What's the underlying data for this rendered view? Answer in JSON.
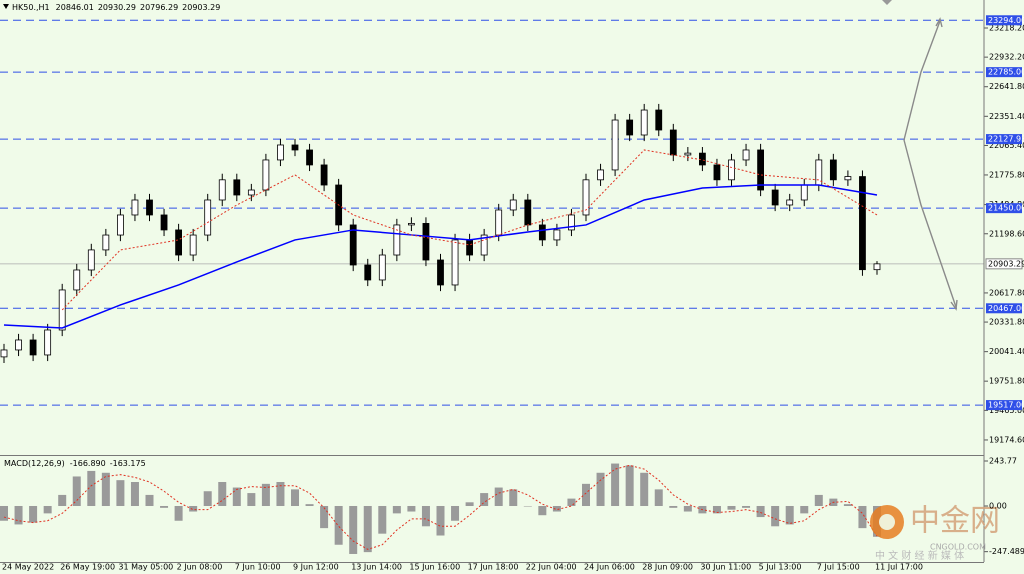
{
  "chart_data": [
    {
      "type": "candlestick",
      "title": "HK50.,H1",
      "categories": [
        "24 May 2022",
        null,
        null,
        null,
        "26 May 19:00",
        null,
        null,
        null,
        "31 May 05:00",
        null,
        null,
        null,
        "2 Jun 08:00",
        null,
        null,
        null,
        "7 Jun 10:00",
        null,
        null,
        null,
        "9 Jun 12:00",
        null,
        null,
        null,
        "13 Jun 14:00",
        null,
        null,
        null,
        "15 Jun 16:00",
        null,
        null,
        null,
        "17 Jun 18:00",
        null,
        null,
        null,
        "22 Jun 04:00",
        null,
        null,
        null,
        "24 Jun 06:00",
        null,
        null,
        null,
        "28 Jun 09:00",
        null,
        null,
        null,
        "30 Jun 11:00",
        null,
        null,
        null,
        "5 Jul 13:00",
        null,
        null,
        null,
        "7 Jul 15:00",
        null,
        null,
        null,
        "11 Jul 17:00"
      ],
      "open": [
        19990,
        20058,
        20156,
        20009,
        20254,
        20647,
        20843,
        21040,
        21186,
        21383,
        21530,
        21383,
        21236,
        20990,
        21186,
        21530,
        21728,
        21579,
        21628,
        21923,
        22070,
        22021,
        21874,
        21677,
        21285,
        20892,
        20745,
        20990,
        21285,
        21300,
        20941,
        20696,
        21138,
        20990,
        21186,
        21432,
        21530,
        21285,
        21138,
        21236,
        21383,
        21728,
        21825,
        22315,
        22168,
        22413,
        22217,
        21972,
        21990,
        21874,
        21728,
        21923,
        22021,
        21628,
        21481,
        21530,
        21677,
        21923,
        21728,
        21760,
        20846.01
      ],
      "high": [
        20118,
        20216,
        20216,
        20314,
        20707,
        20903,
        21100,
        21246,
        21443,
        21590,
        21590,
        21443,
        21296,
        21246,
        21590,
        21788,
        21788,
        21688,
        21983,
        22130,
        22130,
        22081,
        21934,
        21737,
        21345,
        20952,
        21050,
        21345,
        21360,
        21360,
        21001,
        21198,
        21198,
        21246,
        21492,
        21590,
        21590,
        21345,
        21296,
        21443,
        21788,
        21885,
        22375,
        22375,
        22473,
        22473,
        22277,
        22050,
        22050,
        21934,
        21983,
        22081,
        22081,
        21688,
        21590,
        21737,
        21983,
        21983,
        21820,
        21820,
        20930.29
      ],
      "low": [
        19930,
        19998,
        19949,
        19949,
        20194,
        20587,
        20783,
        20980,
        21126,
        21323,
        21323,
        21176,
        20930,
        20930,
        21126,
        21470,
        21519,
        21519,
        21568,
        21863,
        21961,
        21814,
        21617,
        21225,
        20832,
        20685,
        20685,
        20930,
        21225,
        20881,
        20636,
        20636,
        20930,
        20930,
        21126,
        21372,
        21225,
        21078,
        21078,
        21176,
        21323,
        21668,
        21765,
        22108,
        22108,
        22157,
        21912,
        21912,
        21814,
        21668,
        21668,
        21863,
        21568,
        21421,
        21421,
        21470,
        21617,
        21668,
        21668,
        20786,
        20796.29
      ],
      "close": [
        20058,
        20156,
        20009,
        20254,
        20647,
        20843,
        21040,
        21186,
        21383,
        21530,
        21383,
        21236,
        20990,
        21186,
        21530,
        21728,
        21579,
        21628,
        21923,
        22070,
        22021,
        21874,
        21677,
        21285,
        20892,
        20745,
        20990,
        21285,
        21300,
        20941,
        20696,
        21138,
        20990,
        21186,
        21432,
        21530,
        21285,
        21138,
        21236,
        21383,
        21728,
        21825,
        22315,
        22168,
        22413,
        22217,
        21972,
        21990,
        21874,
        21728,
        21923,
        22021,
        21628,
        21481,
        21530,
        21677,
        21923,
        21728,
        21760,
        20846.01,
        20903.29
      ],
      "up_color": "#ffffff",
      "down_color": "#000000",
      "series": [
        {
          "color": "#0000ff",
          "x": [
            0,
            4,
            8,
            12,
            16,
            20,
            24,
            28,
            32,
            36,
            40,
            44,
            48,
            52,
            56,
            60
          ],
          "values": [
            20303,
            20274,
            20500,
            20696,
            20922,
            21138,
            21236,
            21187,
            21138,
            21216,
            21285,
            21530,
            21648,
            21677,
            21677,
            21579
          ]
        },
        {
          "color": "#e03020",
          "dashed": true,
          "x": [
            4,
            8,
            12,
            16,
            20,
            24,
            28,
            32,
            36,
            40,
            44,
            48,
            52,
            56,
            60
          ],
          "values": [
            20451,
            21040,
            21138,
            21481,
            21776,
            21383,
            21187,
            21089,
            21285,
            21432,
            22021,
            21923,
            21776,
            21727,
            21383
          ]
        }
      ],
      "levels": [
        {
          "value": 23294,
          "label": "23294.00"
        },
        {
          "value": 22785,
          "label": "22785.00"
        },
        {
          "value": 22127.93,
          "label": "22127.93"
        },
        {
          "value": 21450,
          "label": "21450.00"
        },
        {
          "value": 20467,
          "label": "20467.00"
        },
        {
          "value": 19517,
          "label": "19517.00"
        }
      ],
      "level_color": "#2f4fe8",
      "ylim": [
        19027,
        23493
      ],
      "yticks": [
        {
          "value": 23218.2,
          "label": "23218.20"
        },
        {
          "value": 22932.2,
          "label": "22932.20"
        },
        {
          "value": 22641.8,
          "label": "22641.80"
        },
        {
          "value": 22351.4,
          "label": "22351.40"
        },
        {
          "value": 22065.4,
          "label": "22065.40"
        },
        {
          "value": 21775.8,
          "label": "21775.80"
        },
        {
          "value": 21484.8,
          "label": "21484.80"
        },
        {
          "value": 21198.6,
          "label": "21198.60"
        },
        {
          "value": 20617.8,
          "label": "20617.80"
        },
        {
          "value": 20331.8,
          "label": "20331.80"
        },
        {
          "value": 20041.4,
          "label": "20041.40"
        },
        {
          "value": 19751.8,
          "label": "19751.80"
        },
        {
          "value": 19465,
          "label": "19465.00"
        },
        {
          "value": 19174.6,
          "label": "19174.60"
        }
      ]
    },
    {
      "type": "macd",
      "title": "MACD(12,26,9)",
      "readout": [
        {
          "value": -166.89,
          "label": "-166.890"
        },
        -163.175
      ],
      "color": "#9a9a9a",
      "values": [
        -80,
        -100,
        -90,
        -40,
        60,
        160,
        190,
        180,
        140,
        130,
        60,
        -10,
        -80,
        -30,
        80,
        130,
        100,
        70,
        120,
        130,
        90,
        10,
        -120,
        -210,
        -260,
        -250,
        -150,
        -40,
        -30,
        -110,
        -160,
        -80,
        20,
        70,
        100,
        90,
        0,
        -50,
        -30,
        40,
        120,
        180,
        230,
        220,
        180,
        90,
        -10,
        -30,
        -40,
        -40,
        -20,
        -10,
        -60,
        -110,
        -100,
        -40,
        60,
        40,
        10,
        -120,
        -166.89
      ],
      "signal": {
        "color": "#e03020",
        "values": [
          -60,
          -80,
          -90,
          -80,
          -40,
          30,
          110,
          160,
          170,
          155,
          130,
          80,
          20,
          -20,
          -20,
          30,
          90,
          105,
          100,
          110,
          110,
          70,
          -10,
          -110,
          -190,
          -235,
          -210,
          -130,
          -70,
          -70,
          -110,
          -110,
          -50,
          20,
          70,
          90,
          60,
          10,
          -20,
          0,
          70,
          140,
          200,
          220,
          200,
          140,
          60,
          10,
          -20,
          -35,
          -30,
          -20,
          -35,
          -70,
          -95,
          -80,
          -20,
          20,
          25,
          -40,
          -163.175
        ]
      },
      "ylim": [
        -303.5,
        270.9
      ],
      "yticks": [
        243.77,
        {
          "value": 0,
          "label": "0.00"
        },
        -247.489
      ]
    }
  ],
  "watermark": {
    "name": "中金网",
    "site": "CNGOLD.COM",
    "tagline": "中 文 财 经 新 媒 体"
  }
}
